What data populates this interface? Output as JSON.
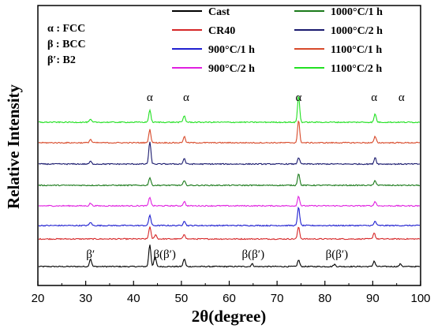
{
  "chart_data": {
    "type": "line",
    "xlabel": "2θ(degree)",
    "ylabel": "Relative Intensity",
    "xlim": [
      20,
      100
    ],
    "xticks": [
      20,
      30,
      40,
      50,
      60,
      70,
      80,
      90,
      100
    ],
    "grid": false,
    "legend_position": "top-right",
    "phase_key": [
      {
        "symbol": "α",
        "phase": "FCC"
      },
      {
        "symbol": "β",
        "phase": "BCC"
      },
      {
        "symbol": "β′",
        "phase": "B2"
      }
    ],
    "series": [
      {
        "name": "Cast",
        "color": "#000000",
        "peaks": [
          [
            31.0,
            0.35
          ],
          [
            43.4,
            1.0
          ],
          [
            44.5,
            0.45
          ],
          [
            50.6,
            0.35
          ],
          [
            64.8,
            0.12
          ],
          [
            74.5,
            0.3
          ],
          [
            82.0,
            0.1
          ],
          [
            90.3,
            0.25
          ],
          [
            95.8,
            0.12
          ]
        ]
      },
      {
        "name": "CR40",
        "color": "#d62728",
        "peaks": [
          [
            43.4,
            0.55
          ],
          [
            44.6,
            0.2
          ],
          [
            50.6,
            0.22
          ],
          [
            74.5,
            0.55
          ],
          [
            90.3,
            0.28
          ]
        ]
      },
      {
        "name": "900°C/1 h",
        "color": "#1f1fd0",
        "peaks": [
          [
            31.0,
            0.15
          ],
          [
            43.4,
            0.48
          ],
          [
            50.6,
            0.22
          ],
          [
            74.5,
            0.85
          ],
          [
            90.5,
            0.2
          ]
        ]
      },
      {
        "name": "900°C/2 h",
        "color": "#e020e0",
        "peaks": [
          [
            31.0,
            0.12
          ],
          [
            43.4,
            0.4
          ],
          [
            50.6,
            0.2
          ],
          [
            74.5,
            0.45
          ],
          [
            90.5,
            0.2
          ]
        ]
      },
      {
        "name": "1000°C/1 h",
        "color": "#1a7a1a",
        "peaks": [
          [
            43.4,
            0.35
          ],
          [
            50.6,
            0.2
          ],
          [
            74.5,
            0.55
          ],
          [
            90.5,
            0.22
          ]
        ]
      },
      {
        "name": "1000°C/2 h",
        "color": "#1a1a6e",
        "peaks": [
          [
            31.0,
            0.12
          ],
          [
            43.4,
            1.0
          ],
          [
            50.6,
            0.25
          ],
          [
            74.5,
            0.3
          ],
          [
            90.5,
            0.3
          ]
        ]
      },
      {
        "name": "1100°C/1 h",
        "color": "#d84a2a",
        "peaks": [
          [
            31.0,
            0.15
          ],
          [
            43.4,
            0.6
          ],
          [
            50.6,
            0.28
          ],
          [
            74.5,
            1.0
          ],
          [
            90.5,
            0.28
          ]
        ]
      },
      {
        "name": "1100°C/2 h",
        "color": "#22e022",
        "peaks": [
          [
            31.0,
            0.12
          ],
          [
            43.4,
            0.55
          ],
          [
            50.6,
            0.3
          ],
          [
            74.5,
            1.2
          ],
          [
            90.5,
            0.38
          ]
        ]
      }
    ],
    "annotations": [
      {
        "text": "α",
        "x": 43.4,
        "row": "top"
      },
      {
        "text": "α",
        "x": 51.0,
        "row": "top"
      },
      {
        "text": "α",
        "x": 74.5,
        "row": "top"
      },
      {
        "text": "α",
        "x": 90.3,
        "row": "top"
      },
      {
        "text": "α",
        "x": 96.0,
        "row": "top"
      },
      {
        "text": "β′",
        "x": 31.0,
        "row": "bottom"
      },
      {
        "text": "β(β′)",
        "x": 46.5,
        "row": "bottom"
      },
      {
        "text": "β(β′)",
        "x": 65.0,
        "row": "bottom"
      },
      {
        "text": "β(β′)",
        "x": 82.5,
        "row": "bottom"
      }
    ]
  }
}
